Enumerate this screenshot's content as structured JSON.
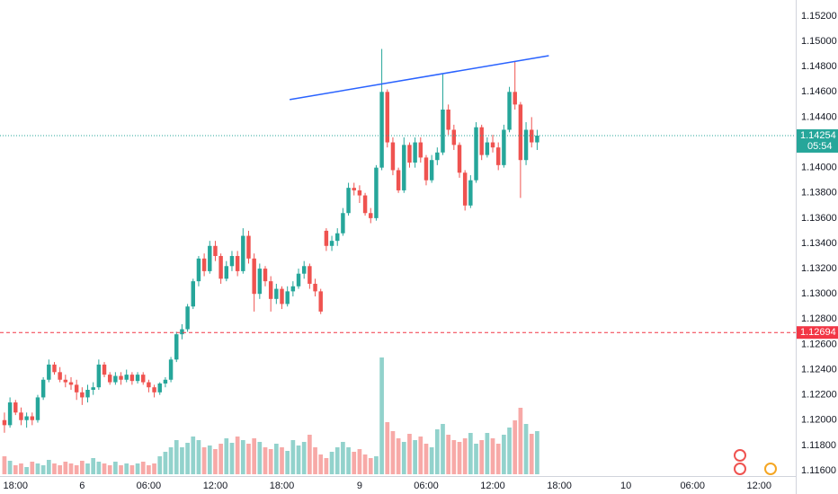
{
  "chart_data": {
    "type": "candlestick",
    "up_color": "#26a69a",
    "down_color": "#ef5350",
    "x": [
      0,
      1,
      2,
      3,
      4,
      5,
      6,
      7,
      8,
      9,
      10,
      11,
      12,
      13,
      14,
      15,
      16,
      17,
      18,
      19,
      20,
      21,
      22,
      23,
      24,
      25,
      26,
      27,
      28,
      29,
      30,
      31,
      32,
      33,
      34,
      35,
      36,
      37,
      38,
      39,
      40,
      41,
      42,
      43,
      44,
      45,
      46,
      47,
      48,
      49,
      50,
      51,
      52,
      53,
      54,
      55,
      56,
      57,
      58,
      59,
      60,
      61,
      62,
      63,
      64,
      65,
      66,
      67,
      68,
      69,
      70,
      71,
      72,
      73,
      74,
      75,
      76,
      77,
      78,
      79,
      80,
      81,
      82,
      83,
      84,
      85,
      86,
      87,
      88,
      89,
      90,
      91,
      92,
      93,
      94,
      95,
      96
    ],
    "candles": [
      [
        1.12,
        1.1206,
        1.119,
        1.1196
      ],
      [
        1.1196,
        1.1218,
        1.1194,
        1.1214
      ],
      [
        1.1214,
        1.1216,
        1.1204,
        1.1206
      ],
      [
        1.1206,
        1.121,
        1.1196,
        1.12
      ],
      [
        1.12,
        1.1206,
        1.1194,
        1.1203
      ],
      [
        1.1203,
        1.1206,
        1.1196,
        1.12
      ],
      [
        1.12,
        1.122,
        1.1198,
        1.1218
      ],
      [
        1.1218,
        1.1234,
        1.1216,
        1.1232
      ],
      [
        1.1232,
        1.1248,
        1.123,
        1.1244
      ],
      [
        1.1244,
        1.1246,
        1.1236,
        1.1238
      ],
      [
        1.1238,
        1.1242,
        1.123,
        1.1232
      ],
      [
        1.1232,
        1.1236,
        1.1226,
        1.123
      ],
      [
        1.123,
        1.1234,
        1.1224,
        1.1228
      ],
      [
        1.1228,
        1.1232,
        1.1216,
        1.1222
      ],
      [
        1.1222,
        1.1226,
        1.1212,
        1.1218
      ],
      [
        1.1218,
        1.1228,
        1.1214,
        1.1224
      ],
      [
        1.1224,
        1.123,
        1.122,
        1.1226
      ],
      [
        1.1226,
        1.1248,
        1.1224,
        1.1244
      ],
      [
        1.1244,
        1.1246,
        1.1234,
        1.1236
      ],
      [
        1.1236,
        1.1238,
        1.1228,
        1.123
      ],
      [
        1.123,
        1.1238,
        1.1228,
        1.1235
      ],
      [
        1.1235,
        1.1238,
        1.1228,
        1.1232
      ],
      [
        1.1232,
        1.124,
        1.123,
        1.1236
      ],
      [
        1.1236,
        1.1238,
        1.1228,
        1.1231
      ],
      [
        1.1231,
        1.1238,
        1.1229,
        1.1236
      ],
      [
        1.1236,
        1.1238,
        1.1228,
        1.123
      ],
      [
        1.123,
        1.1232,
        1.1222,
        1.1226
      ],
      [
        1.1226,
        1.1228,
        1.1218,
        1.1222
      ],
      [
        1.1222,
        1.123,
        1.122,
        1.1229
      ],
      [
        1.1229,
        1.1234,
        1.1226,
        1.1232
      ],
      [
        1.1232,
        1.125,
        1.123,
        1.1248
      ],
      [
        1.1248,
        1.127,
        1.1246,
        1.1268
      ],
      [
        1.1268,
        1.1276,
        1.1264,
        1.1272
      ],
      [
        1.1272,
        1.1292,
        1.127,
        1.129
      ],
      [
        1.129,
        1.1312,
        1.1288,
        1.131
      ],
      [
        1.131,
        1.133,
        1.1306,
        1.1328
      ],
      [
        1.1328,
        1.1332,
        1.1314,
        1.1318
      ],
      [
        1.1318,
        1.1342,
        1.1316,
        1.1338
      ],
      [
        1.1338,
        1.1342,
        1.1326,
        1.133
      ],
      [
        1.133,
        1.1332,
        1.1308,
        1.1312
      ],
      [
        1.1312,
        1.1326,
        1.131,
        1.1322
      ],
      [
        1.1322,
        1.1334,
        1.1318,
        1.133
      ],
      [
        1.133,
        1.1334,
        1.1314,
        1.1318
      ],
      [
        1.1318,
        1.1352,
        1.1316,
        1.1346
      ],
      [
        1.1346,
        1.135,
        1.1324,
        1.1328
      ],
      [
        1.1328,
        1.1332,
        1.1286,
        1.13
      ],
      [
        1.13,
        1.1324,
        1.1296,
        1.132
      ],
      [
        1.132,
        1.1322,
        1.1306,
        1.131
      ],
      [
        1.131,
        1.1314,
        1.1286,
        1.1296
      ],
      [
        1.1296,
        1.1308,
        1.1292,
        1.1304
      ],
      [
        1.1304,
        1.1306,
        1.1288,
        1.1292
      ],
      [
        1.1292,
        1.1306,
        1.129,
        1.1302
      ],
      [
        1.1302,
        1.131,
        1.1298,
        1.1306
      ],
      [
        1.1306,
        1.132,
        1.1304,
        1.1316
      ],
      [
        1.1316,
        1.1326,
        1.1312,
        1.1322
      ],
      [
        1.1322,
        1.1324,
        1.1304,
        1.1308
      ],
      [
        1.1308,
        1.1312,
        1.1298,
        1.1302
      ],
      [
        1.1302,
        1.1304,
        1.1284,
        1.1286
      ],
      [
        1.135,
        1.1352,
        1.1334,
        1.1338
      ],
      [
        1.1338,
        1.1346,
        1.1334,
        1.1342
      ],
      [
        1.1342,
        1.1352,
        1.1338,
        1.1348
      ],
      [
        1.1348,
        1.1368,
        1.1346,
        1.1364
      ],
      [
        1.1364,
        1.1388,
        1.1362,
        1.1384
      ],
      [
        1.1384,
        1.1388,
        1.1378,
        1.1382
      ],
      [
        1.1382,
        1.1386,
        1.1372,
        1.1378
      ],
      [
        1.1378,
        1.138,
        1.1362,
        1.1364
      ],
      [
        1.1364,
        1.1368,
        1.1356,
        1.136
      ],
      [
        1.136,
        1.1402,
        1.1358,
        1.14
      ],
      [
        1.14,
        1.1494,
        1.1398,
        1.146
      ],
      [
        1.146,
        1.1462,
        1.1416,
        1.142
      ],
      [
        1.142,
        1.1424,
        1.1394,
        1.1398
      ],
      [
        1.1398,
        1.14,
        1.138,
        1.1382
      ],
      [
        1.1382,
        1.1424,
        1.138,
        1.1418
      ],
      [
        1.1418,
        1.142,
        1.14,
        1.1404
      ],
      [
        1.1404,
        1.1424,
        1.14,
        1.142
      ],
      [
        1.142,
        1.1424,
        1.1404,
        1.1408
      ],
      [
        1.1408,
        1.141,
        1.1386,
        1.139
      ],
      [
        1.139,
        1.141,
        1.1388,
        1.1406
      ],
      [
        1.1406,
        1.1416,
        1.1402,
        1.1412
      ],
      [
        1.1412,
        1.1474,
        1.141,
        1.1446
      ],
      [
        1.1446,
        1.145,
        1.1426,
        1.143
      ],
      [
        1.143,
        1.1434,
        1.1414,
        1.1418
      ],
      [
        1.1418,
        1.142,
        1.1392,
        1.1396
      ],
      [
        1.1396,
        1.1398,
        1.1366,
        1.137
      ],
      [
        1.137,
        1.1394,
        1.1368,
        1.139
      ],
      [
        1.139,
        1.1436,
        1.1388,
        1.1432
      ],
      [
        1.1432,
        1.1434,
        1.1406,
        1.141
      ],
      [
        1.141,
        1.1424,
        1.1408,
        1.142
      ],
      [
        1.142,
        1.1426,
        1.1412,
        1.1416
      ],
      [
        1.1416,
        1.142,
        1.1398,
        1.1402
      ],
      [
        1.1402,
        1.1434,
        1.14,
        1.143
      ],
      [
        1.143,
        1.1464,
        1.1428,
        1.146
      ],
      [
        1.146,
        1.1484,
        1.1446,
        1.145
      ],
      [
        1.145,
        1.1452,
        1.1376,
        1.1406
      ],
      [
        1.1406,
        1.1436,
        1.1402,
        1.143
      ],
      [
        1.143,
        1.144,
        1.1416,
        1.142
      ],
      [
        1.142,
        1.143,
        1.1414,
        1.14254
      ]
    ],
    "volumes": [
      20,
      15,
      10,
      12,
      8,
      14,
      12,
      10,
      16,
      12,
      10,
      14,
      12,
      10,
      15,
      12,
      18,
      14,
      12,
      10,
      14,
      10,
      12,
      10,
      12,
      14,
      10,
      12,
      20,
      25,
      30,
      38,
      30,
      35,
      42,
      38,
      30,
      32,
      28,
      34,
      40,
      35,
      42,
      38,
      34,
      40,
      36,
      30,
      28,
      34,
      30,
      26,
      38,
      32,
      36,
      44,
      30,
      22,
      18,
      25,
      30,
      36,
      30,
      25,
      28,
      22,
      18,
      20,
      130,
      58,
      48,
      40,
      36,
      45,
      38,
      42,
      34,
      30,
      50,
      56,
      44,
      38,
      36,
      40,
      46,
      34,
      38,
      46,
      40,
      34,
      44,
      52,
      60,
      74,
      56,
      45,
      48
    ],
    "xlim": [
      -0.8,
      142.6
    ],
    "xticks": [
      {
        "value": 2,
        "label": "18:00"
      },
      {
        "value": 14,
        "label": "6"
      },
      {
        "value": 26,
        "label": "06:00"
      },
      {
        "value": 38,
        "label": "12:00"
      },
      {
        "value": 50,
        "label": "18:00"
      },
      {
        "value": 64,
        "label": "9"
      },
      {
        "value": 76,
        "label": "06:00"
      },
      {
        "value": 88,
        "label": "12:00"
      },
      {
        "value": 100,
        "label": "18:00"
      },
      {
        "value": 112,
        "label": "10"
      },
      {
        "value": 124,
        "label": "06:00"
      },
      {
        "value": 136,
        "label": "12:00"
      }
    ],
    "ylim": [
      1.11557,
      1.15328
    ],
    "yticks": [
      {
        "value": 1.116,
        "label": "1.11600"
      },
      {
        "value": 1.118,
        "label": "1.11800"
      },
      {
        "value": 1.12,
        "label": "1.12000"
      },
      {
        "value": 1.122,
        "label": "1.12200"
      },
      {
        "value": 1.124,
        "label": "1.12400"
      },
      {
        "value": 1.126,
        "label": "1.12600"
      },
      {
        "value": 1.128,
        "label": "1.12800"
      },
      {
        "value": 1.13,
        "label": "1.13000"
      },
      {
        "value": 1.132,
        "label": "1.13200"
      },
      {
        "value": 1.134,
        "label": "1.13400"
      },
      {
        "value": 1.136,
        "label": "1.13600"
      },
      {
        "value": 1.138,
        "label": "1.13800"
      },
      {
        "value": 1.14,
        "label": "1.14000"
      },
      {
        "value": 1.142,
        "label": "1.14200"
      },
      {
        "value": 1.144,
        "label": "1.14400"
      },
      {
        "value": 1.146,
        "label": "1.14600"
      },
      {
        "value": 1.148,
        "label": "1.14800"
      },
      {
        "value": 1.15,
        "label": "1.15000"
      },
      {
        "value": 1.152,
        "label": "1.15200"
      }
    ],
    "grid": false,
    "current_price": 1.14254,
    "countdown": "05:54",
    "alert_price": 1.12694,
    "alert_color": "#f23645",
    "trendline": {
      "x": [
        51.4,
        98.1
      ],
      "y": [
        1.14539,
        1.14887
      ],
      "color": "#2962ff"
    }
  }
}
